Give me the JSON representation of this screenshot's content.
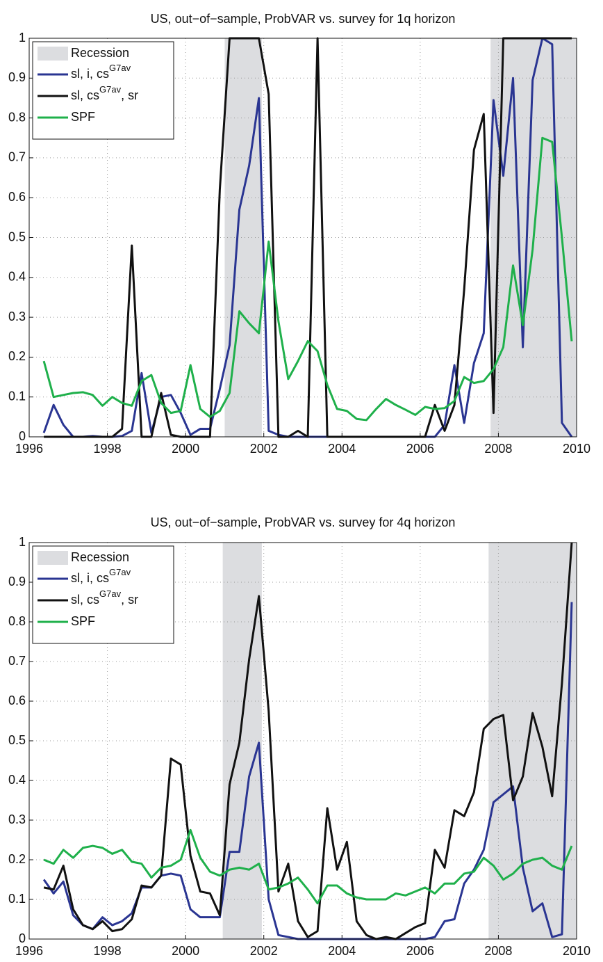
{
  "chart_data": [
    {
      "type": "line",
      "title": "US, out−of−sample, ProbVAR vs. survey for 1q horizon",
      "x": [
        1996.375,
        1996.625,
        1996.875,
        1997.125,
        1997.375,
        1997.625,
        1997.875,
        1998.125,
        1998.375,
        1998.625,
        1998.875,
        1999.125,
        1999.375,
        1999.625,
        1999.875,
        2000.125,
        2000.375,
        2000.625,
        2000.875,
        2001.125,
        2001.375,
        2001.625,
        2001.875,
        2002.125,
        2002.375,
        2002.625,
        2002.875,
        2003.125,
        2003.375,
        2003.625,
        2003.875,
        2004.125,
        2004.375,
        2004.625,
        2004.875,
        2005.125,
        2005.375,
        2005.625,
        2005.875,
        2006.125,
        2006.375,
        2006.625,
        2006.875,
        2007.125,
        2007.375,
        2007.625,
        2007.875,
        2008.125,
        2008.375,
        2008.625,
        2008.875,
        2009.125,
        2009.375,
        2009.625,
        2009.875
      ],
      "xlim": [
        1996,
        2010
      ],
      "xticks": [
        1996,
        1998,
        2000,
        2002,
        2004,
        2006,
        2008,
        2010
      ],
      "ylim": [
        0,
        1
      ],
      "yticks": [
        0,
        0.1,
        0.2,
        0.3,
        0.4,
        0.5,
        0.6,
        0.7,
        0.8,
        0.9,
        1
      ],
      "grid": true,
      "legend": "upper left",
      "recessions": {
        "name": "Recession",
        "color": "#dcdde0",
        "spans": [
          [
            2001.0,
            2001.95
          ],
          [
            2007.8,
            2010
          ]
        ]
      },
      "series": [
        {
          "name": [
            {
              "text": "sl, i, cs"
            },
            {
              "sup": "G7av"
            }
          ],
          "color": "#2a3592",
          "values": [
            0.01,
            0.08,
            0.03,
            0,
            0,
            0.002,
            0,
            0,
            0.002,
            0.015,
            0.16,
            0.01,
            0.1,
            0.105,
            0.06,
            0.005,
            0.02,
            0.02,
            0.12,
            0.23,
            0.57,
            0.68,
            0.85,
            0.015,
            0.005,
            0,
            0,
            0,
            0,
            0,
            0,
            0,
            0,
            0,
            0,
            0,
            0,
            0,
            0,
            0,
            0,
            0.03,
            0.18,
            0.035,
            0.185,
            0.26,
            0.845,
            0.655,
            0.9,
            0.225,
            0.895,
            1,
            0.985,
            0.035,
            0
          ]
        },
        {
          "name": [
            {
              "text": "sl, cs"
            },
            {
              "sup": "G7av"
            },
            {
              "text": ", sr"
            }
          ],
          "color": "#111111",
          "values": [
            0,
            0,
            0,
            0,
            0,
            0,
            0,
            0,
            0.02,
            0.48,
            0,
            0,
            0.11,
            0.005,
            0,
            0,
            0,
            0,
            0.62,
            1,
            1,
            1,
            1,
            0.86,
            0,
            0,
            0.015,
            0,
            1,
            0,
            0,
            0,
            0,
            0,
            0,
            0,
            0,
            0,
            0,
            0,
            0.08,
            0.015,
            0.08,
            0.37,
            0.72,
            0.81,
            0.06,
            1,
            1,
            1,
            1,
            1,
            1,
            1,
            1
          ]
        },
        {
          "name": [
            {
              "text": "SPF"
            }
          ],
          "color": "#1fb04b",
          "values": [
            0.19,
            0.1,
            0.105,
            0.11,
            0.112,
            0.105,
            0.078,
            0.1,
            0.085,
            0.078,
            0.14,
            0.155,
            0.085,
            0.06,
            0.065,
            0.18,
            0.07,
            0.05,
            0.065,
            0.11,
            0.315,
            0.285,
            0.26,
            0.49,
            0.29,
            0.145,
            0.19,
            0.24,
            0.215,
            0.13,
            0.07,
            0.065,
            0.045,
            0.042,
            0.07,
            0.095,
            0.08,
            0.068,
            0.055,
            0.075,
            0.07,
            0.072,
            0.09,
            0.15,
            0.135,
            0.14,
            0.17,
            0.225,
            0.43,
            0.28,
            0.47,
            0.75,
            0.74,
            0.5,
            0.24
          ]
        }
      ]
    },
    {
      "type": "line",
      "title": "US, out−of−sample, ProbVAR vs. survey for 4q horizon",
      "x": [
        1996.375,
        1996.625,
        1996.875,
        1997.125,
        1997.375,
        1997.625,
        1997.875,
        1998.125,
        1998.375,
        1998.625,
        1998.875,
        1999.125,
        1999.375,
        1999.625,
        1999.875,
        2000.125,
        2000.375,
        2000.625,
        2000.875,
        2001.125,
        2001.375,
        2001.625,
        2001.875,
        2002.125,
        2002.375,
        2002.625,
        2002.875,
        2003.125,
        2003.375,
        2003.625,
        2003.875,
        2004.125,
        2004.375,
        2004.625,
        2004.875,
        2005.125,
        2005.375,
        2005.625,
        2005.875,
        2006.125,
        2006.375,
        2006.625,
        2006.875,
        2007.125,
        2007.375,
        2007.625,
        2007.875,
        2008.125,
        2008.375,
        2008.625,
        2008.875,
        2009.125,
        2009.375,
        2009.625,
        2009.875
      ],
      "xlim": [
        1996,
        2010
      ],
      "xticks": [
        1996,
        1998,
        2000,
        2002,
        2004,
        2006,
        2008,
        2010
      ],
      "ylim": [
        0,
        1
      ],
      "yticks": [
        0,
        0.1,
        0.2,
        0.3,
        0.4,
        0.5,
        0.6,
        0.7,
        0.8,
        0.9,
        1
      ],
      "grid": true,
      "legend": "upper left",
      "recessions": {
        "name": "Recession",
        "color": "#dcdde0",
        "spans": [
          [
            2000.95,
            2001.95
          ],
          [
            2007.75,
            2010
          ]
        ]
      },
      "series": [
        {
          "name": [
            {
              "text": "sl, i, cs"
            },
            {
              "sup": "G7av"
            }
          ],
          "color": "#2a3592",
          "values": [
            0.15,
            0.115,
            0.145,
            0.06,
            0.035,
            0.025,
            0.055,
            0.035,
            0.045,
            0.065,
            0.13,
            0.13,
            0.16,
            0.165,
            0.16,
            0.075,
            0.055,
            0.055,
            0.055,
            0.22,
            0.22,
            0.41,
            0.495,
            0.1,
            0.01,
            0.005,
            0,
            0,
            0,
            0,
            0,
            0,
            0,
            0,
            0,
            0,
            0,
            0,
            0,
            0,
            0.005,
            0.045,
            0.05,
            0.14,
            0.175,
            0.225,
            0.345,
            0.365,
            0.385,
            0.18,
            0.07,
            0.09,
            0.005,
            0.012,
            0.85
          ]
        },
        {
          "name": [
            {
              "text": "sl, cs"
            },
            {
              "sup": "G7av"
            },
            {
              "text": ", sr"
            }
          ],
          "color": "#111111",
          "values": [
            0.13,
            0.125,
            0.185,
            0.075,
            0.035,
            0.025,
            0.045,
            0.02,
            0.025,
            0.05,
            0.135,
            0.13,
            0.16,
            0.455,
            0.44,
            0.21,
            0.12,
            0.115,
            0.06,
            0.39,
            0.495,
            0.705,
            0.865,
            0.575,
            0.12,
            0.19,
            0.045,
            0.005,
            0.02,
            0.33,
            0.175,
            0.245,
            0.045,
            0.01,
            0,
            0.005,
            0,
            0.015,
            0.03,
            0.04,
            0.225,
            0.18,
            0.325,
            0.31,
            0.37,
            0.53,
            0.555,
            0.565,
            0.35,
            0.41,
            0.57,
            0.485,
            0.36,
            0.645,
            1
          ]
        },
        {
          "name": [
            {
              "text": "SPF"
            }
          ],
          "color": "#1fb04b",
          "values": [
            0.2,
            0.19,
            0.225,
            0.205,
            0.23,
            0.235,
            0.23,
            0.215,
            0.225,
            0.195,
            0.19,
            0.155,
            0.18,
            0.185,
            0.2,
            0.275,
            0.205,
            0.17,
            0.16,
            0.175,
            0.18,
            0.175,
            0.19,
            0.125,
            0.13,
            0.14,
            0.155,
            0.125,
            0.09,
            0.135,
            0.135,
            0.115,
            0.105,
            0.1,
            0.1,
            0.1,
            0.115,
            0.11,
            0.12,
            0.13,
            0.115,
            0.14,
            0.14,
            0.165,
            0.17,
            0.205,
            0.185,
            0.15,
            0.165,
            0.19,
            0.2,
            0.205,
            0.185,
            0.175,
            0.235
          ]
        }
      ]
    }
  ]
}
